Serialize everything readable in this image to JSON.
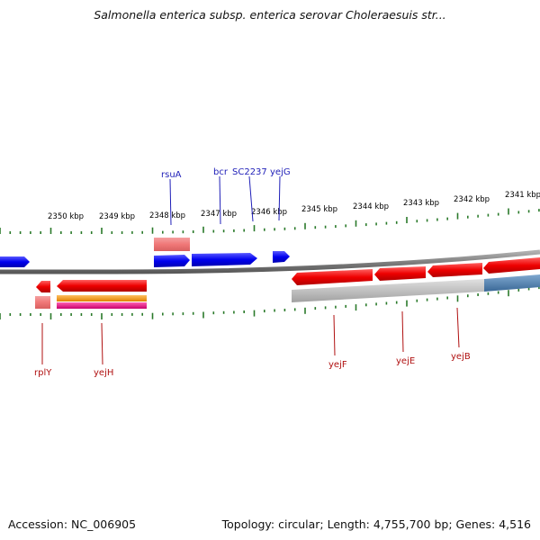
{
  "title": "Salmonella enterica subsp. enterica serovar Choleraesuis str...",
  "footer": {
    "accession": "Accession: NC_006905",
    "summary": "Topology: circular; Length: 4,755,700 bp; Genes: 4,516"
  },
  "ticks": [
    {
      "label": "2350 kbp"
    },
    {
      "label": "2349 kbp"
    },
    {
      "label": "2348 kbp"
    },
    {
      "label": "2347 kbp"
    },
    {
      "label": "2346 kbp"
    },
    {
      "label": "2345 kbp"
    },
    {
      "label": "2344 kbp"
    },
    {
      "label": "2343 kbp"
    },
    {
      "label": "2342 kbp"
    },
    {
      "label": "2341 kbp"
    }
  ],
  "genes_top": [
    {
      "label": "rsuA"
    },
    {
      "label": "bcr"
    },
    {
      "label": "SC2237"
    },
    {
      "label": "yejG"
    }
  ],
  "genes_bottom": [
    {
      "label": "rplY"
    },
    {
      "label": "yejH"
    },
    {
      "label": "yejF"
    },
    {
      "label": "yejE"
    },
    {
      "label": "yejB"
    }
  ],
  "colors": {
    "forward_gene": "#0000ee",
    "reverse_gene": "#ee0000",
    "rna": "#f08080",
    "orange_feature": "#f39a1c",
    "magenta_feature": "#e8148c",
    "grey_feature": "#b8b8b8",
    "steel_feature": "#4a7fb0",
    "backbone": "#888888",
    "tick": "#2a7a2a"
  }
}
